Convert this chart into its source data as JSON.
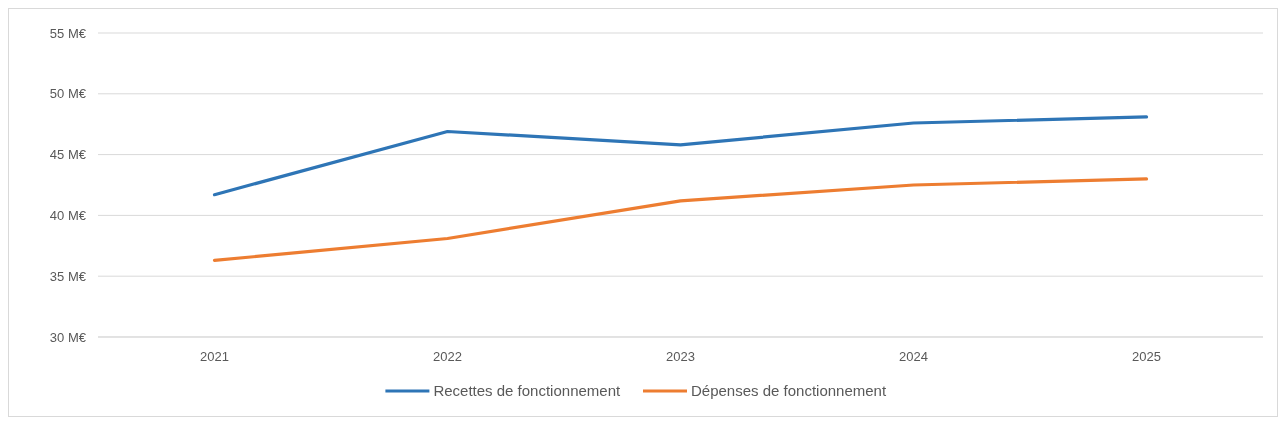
{
  "chart_data": {
    "type": "line",
    "categories": [
      "2021",
      "2022",
      "2023",
      "2024",
      "2025"
    ],
    "series": [
      {
        "name": "Recettes de fonctionnement",
        "color": "#2e75b6",
        "values": [
          41.7,
          46.9,
          45.8,
          47.6,
          48.1
        ]
      },
      {
        "name": "Dépenses de fonctionnement",
        "color": "#ed7d31",
        "values": [
          36.3,
          38.1,
          41.2,
          42.5,
          43.0
        ]
      }
    ],
    "ylim": [
      30,
      55
    ],
    "yticks": [
      {
        "value": 30,
        "label": "30 M€"
      },
      {
        "value": 35,
        "label": "35 M€"
      },
      {
        "value": 40,
        "label": "40 M€"
      },
      {
        "value": 45,
        "label": "45 M€"
      },
      {
        "value": 50,
        "label": "50 M€"
      },
      {
        "value": 55,
        "label": "55 M€"
      }
    ],
    "grid": "y",
    "legend": "bottom",
    "marker": "none",
    "line_style": "solid"
  }
}
